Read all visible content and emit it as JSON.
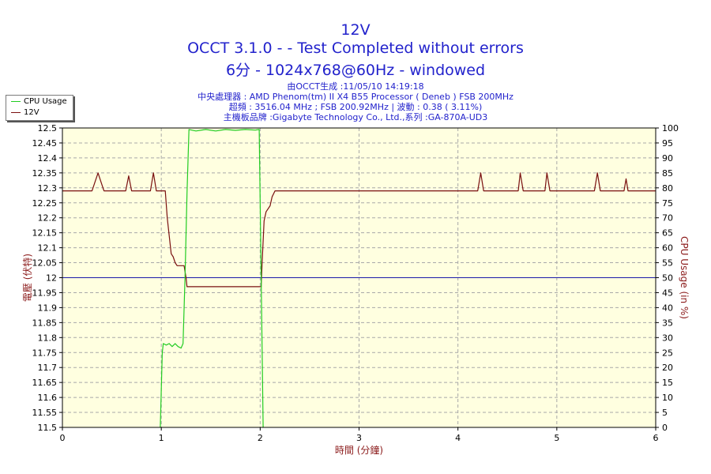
{
  "title_lines": [
    "12V",
    "OCCT 3.1.0 -  - Test Completed without errors",
    "6分 - 1024x768@60Hz - windowed"
  ],
  "info_lines": [
    "由OCCT生成 :11/05/10 14:19:18",
    "中央處理器 : AMD Phenom(tm) II X4 B55 Processor ( Deneb ) FSB 200MHz",
    "超頻 : 3516.04 MHz ; FSB 200.92MHz | 波動 : 0.38 ( 3.11%)",
    "主機板品牌 :Gigabyte Technology Co., Ltd.,系列 :GA-870A-UD3"
  ],
  "legend": [
    {
      "label": "CPU Usage",
      "color": "#22cc22"
    },
    {
      "label": "12V",
      "color": "#7a1010"
    }
  ],
  "chart_data": {
    "type": "line",
    "xlabel": "時間 (分鐘)",
    "ylabel_left": "電壓 (伏特)",
    "ylabel_right": "CPU Usage (in %)",
    "xlim": [
      0,
      6
    ],
    "ylim_left": [
      11.5,
      12.5
    ],
    "ylim_right": [
      0,
      100
    ],
    "x_ticks": [
      "0",
      "1",
      "2",
      "3",
      "4",
      "5",
      "6"
    ],
    "y_left_ticks": [
      "12.5",
      "12.45",
      "12.4",
      "12.35",
      "12.3",
      "12.25",
      "12.2",
      "12.15",
      "12.1",
      "12.05",
      "12",
      "11.95",
      "11.9",
      "11.85",
      "11.8",
      "11.75",
      "11.7",
      "11.65",
      "11.6",
      "11.55",
      "11.5"
    ],
    "y_right_ticks": [
      "100",
      "95",
      "90",
      "85",
      "80",
      "75",
      "70",
      "65",
      "60",
      "55",
      "50",
      "45",
      "40",
      "35",
      "30",
      "25",
      "20",
      "15",
      "10",
      "5",
      "0"
    ],
    "reference_line_left": 12.0,
    "grid": true,
    "colors": {
      "plot_bg": "#ffffe0",
      "grid": "#a8a8a8",
      "reference": "#1a1aaa",
      "axis_text": "#000000",
      "label": "#8b1a1a",
      "cpu": "#22cc22",
      "v12": "#7a1010"
    },
    "series": [
      {
        "name": "12V",
        "axis": "left",
        "points": [
          [
            0.0,
            12.29
          ],
          [
            0.3,
            12.29
          ],
          [
            0.33,
            12.32
          ],
          [
            0.36,
            12.35
          ],
          [
            0.39,
            12.32
          ],
          [
            0.42,
            12.29
          ],
          [
            0.64,
            12.29
          ],
          [
            0.67,
            12.34
          ],
          [
            0.7,
            12.29
          ],
          [
            0.89,
            12.29
          ],
          [
            0.92,
            12.35
          ],
          [
            0.95,
            12.29
          ],
          [
            1.04,
            12.29
          ],
          [
            1.06,
            12.2
          ],
          [
            1.08,
            12.14
          ],
          [
            1.1,
            12.08
          ],
          [
            1.12,
            12.07
          ],
          [
            1.14,
            12.05
          ],
          [
            1.16,
            12.04
          ],
          [
            1.23,
            12.04
          ],
          [
            1.25,
            12.0
          ],
          [
            1.26,
            11.97
          ],
          [
            2.01,
            11.97
          ],
          [
            2.02,
            12.05
          ],
          [
            2.04,
            12.19
          ],
          [
            2.06,
            12.22
          ],
          [
            2.1,
            12.24
          ],
          [
            2.12,
            12.27
          ],
          [
            2.15,
            12.29
          ],
          [
            4.2,
            12.29
          ],
          [
            4.23,
            12.35
          ],
          [
            4.26,
            12.29
          ],
          [
            4.61,
            12.29
          ],
          [
            4.63,
            12.35
          ],
          [
            4.66,
            12.29
          ],
          [
            4.88,
            12.29
          ],
          [
            4.9,
            12.35
          ],
          [
            4.93,
            12.29
          ],
          [
            5.38,
            12.29
          ],
          [
            5.41,
            12.35
          ],
          [
            5.44,
            12.29
          ],
          [
            5.68,
            12.29
          ],
          [
            5.7,
            12.33
          ],
          [
            5.72,
            12.29
          ],
          [
            6.0,
            12.29
          ]
        ]
      },
      {
        "name": "CPU Usage",
        "axis": "right",
        "points": [
          [
            0.99,
            0
          ],
          [
            1.01,
            25
          ],
          [
            1.02,
            28
          ],
          [
            1.05,
            27.5
          ],
          [
            1.08,
            28
          ],
          [
            1.11,
            27
          ],
          [
            1.14,
            28
          ],
          [
            1.17,
            27
          ],
          [
            1.2,
            26.5
          ],
          [
            1.22,
            28
          ],
          [
            1.24,
            50
          ],
          [
            1.26,
            78
          ],
          [
            1.28,
            99.5
          ],
          [
            1.35,
            99
          ],
          [
            1.45,
            99.5
          ],
          [
            1.55,
            99
          ],
          [
            1.65,
            99.5
          ],
          [
            1.75,
            99.2
          ],
          [
            1.85,
            99.5
          ],
          [
            1.95,
            99.3
          ],
          [
            1.99,
            99.5
          ],
          [
            2.01,
            50
          ],
          [
            2.03,
            0
          ]
        ]
      }
    ]
  }
}
